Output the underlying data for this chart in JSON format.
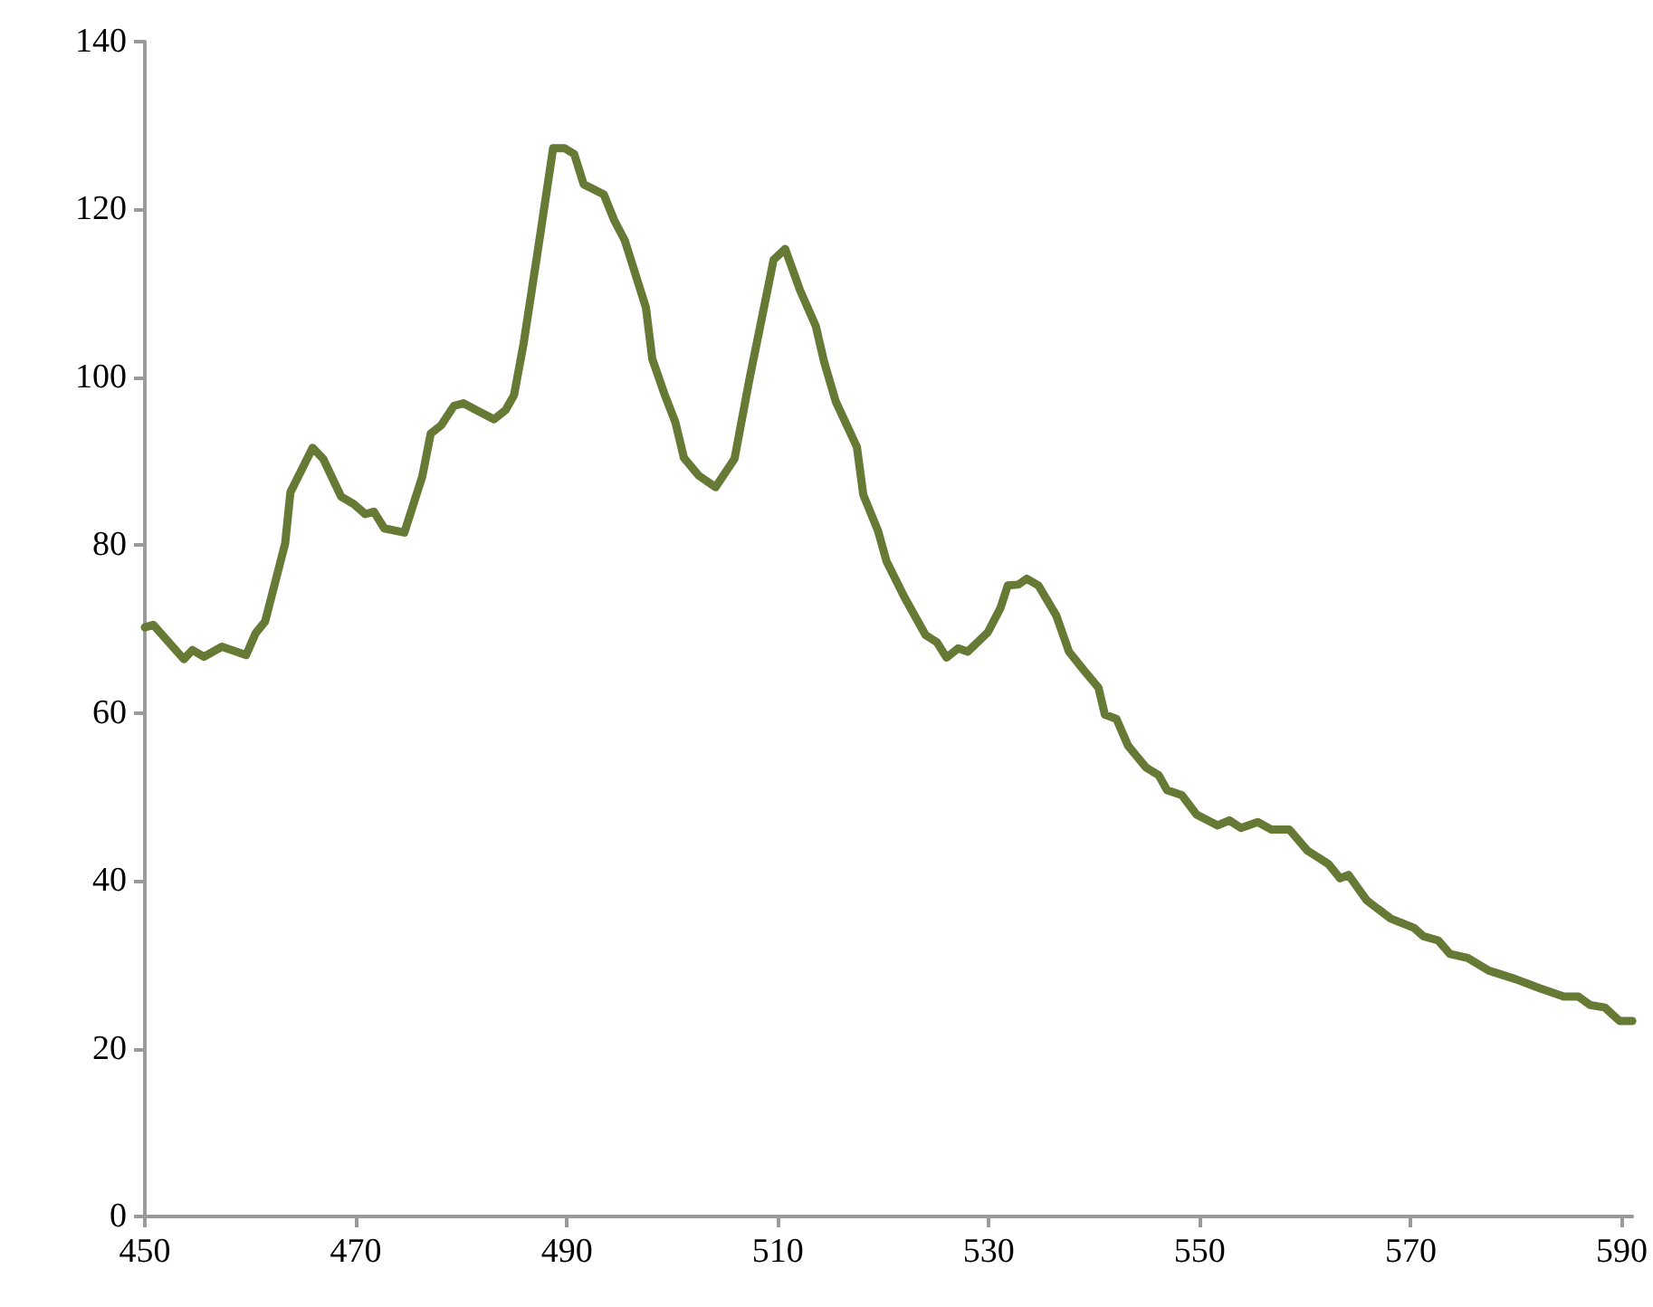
{
  "chart_data": {
    "type": "line",
    "color": "#667a35",
    "x": [
      450,
      450.8,
      453.7,
      454.5,
      455.6,
      457.3,
      459.6,
      460.5,
      461.4,
      463.3,
      463.8,
      465.9,
      466.9,
      468.6,
      469.8,
      470.9,
      471.7,
      472.7,
      474.6,
      476.3,
      477.1,
      478.1,
      479.3,
      480.2,
      481.4,
      483.1,
      484.2,
      485,
      485.9,
      487.3,
      488.7,
      489.8,
      490.7,
      491.6,
      493.5,
      494.5,
      495.5,
      497.5,
      498.1,
      499.2,
      500.3,
      501.1,
      502.5,
      504.1,
      505.9,
      507.3,
      508.8,
      509.6,
      510.7,
      512.1,
      513.6,
      514.4,
      515.5,
      517.5,
      518.1,
      519.5,
      520.3,
      522,
      524,
      525.1,
      526,
      527.1,
      528,
      529.9,
      531.1,
      531.8,
      532.8,
      533.6,
      534.7,
      536.4,
      537.6,
      539,
      540.4,
      541,
      542.1,
      543.2,
      544.9,
      546.1,
      546.9,
      548.3,
      549.7,
      551.7,
      552.8,
      553.9,
      555.5,
      556.8,
      558.5,
      560.2,
      562.2,
      563.3,
      564.1,
      565.8,
      568.1,
      570.3,
      571.2,
      572.6,
      573.7,
      575.4,
      577.4,
      579.9,
      582.2,
      584.5,
      585.9,
      587,
      588.4,
      589.8,
      591
    ],
    "values": [
      70.2,
      70.5,
      66.4,
      67.5,
      66.7,
      67.9,
      66.9,
      69.5,
      70.9,
      80.2,
      86.3,
      91.6,
      90.3,
      85.8,
      84.9,
      83.7,
      84,
      82,
      81.5,
      88.2,
      93.3,
      94.3,
      96.6,
      96.9,
      96.1,
      95,
      96.1,
      97.9,
      104,
      115.5,
      127.3,
      127.3,
      126.6,
      123,
      121.8,
      118.7,
      116.3,
      108.3,
      102.2,
      98.2,
      94.6,
      90.4,
      88.3,
      86.9,
      90.3,
      99.7,
      109,
      114,
      115.3,
      110.4,
      106.1,
      101.8,
      97.1,
      91.7,
      86,
      81.7,
      78.1,
      73.8,
      69.3,
      68.4,
      66.6,
      67.7,
      67.3,
      69.6,
      72.5,
      75.2,
      75.3,
      76,
      75.2,
      71.6,
      67.3,
      65.1,
      63,
      59.8,
      59.3,
      56.1,
      53.5,
      52.6,
      50.8,
      50.2,
      47.9,
      46.6,
      47.2,
      46.3,
      47,
      46.1,
      46.1,
      43.6,
      42,
      40.3,
      40.7,
      37.7,
      35.5,
      34.4,
      33.4,
      32.9,
      31.3,
      30.8,
      29.3,
      28.3,
      27.2,
      26.2,
      26.2,
      25.2,
      24.9,
      23.3,
      23.3
    ],
    "xlim": [
      450,
      591
    ],
    "xticks": [
      450,
      470,
      490,
      510,
      530,
      550,
      570,
      590
    ],
    "ylim": [
      0,
      140
    ],
    "yticks": [
      0,
      20,
      40,
      60,
      80,
      100,
      120,
      140
    ],
    "grid": false,
    "marker": "none",
    "line_style": "solid"
  }
}
